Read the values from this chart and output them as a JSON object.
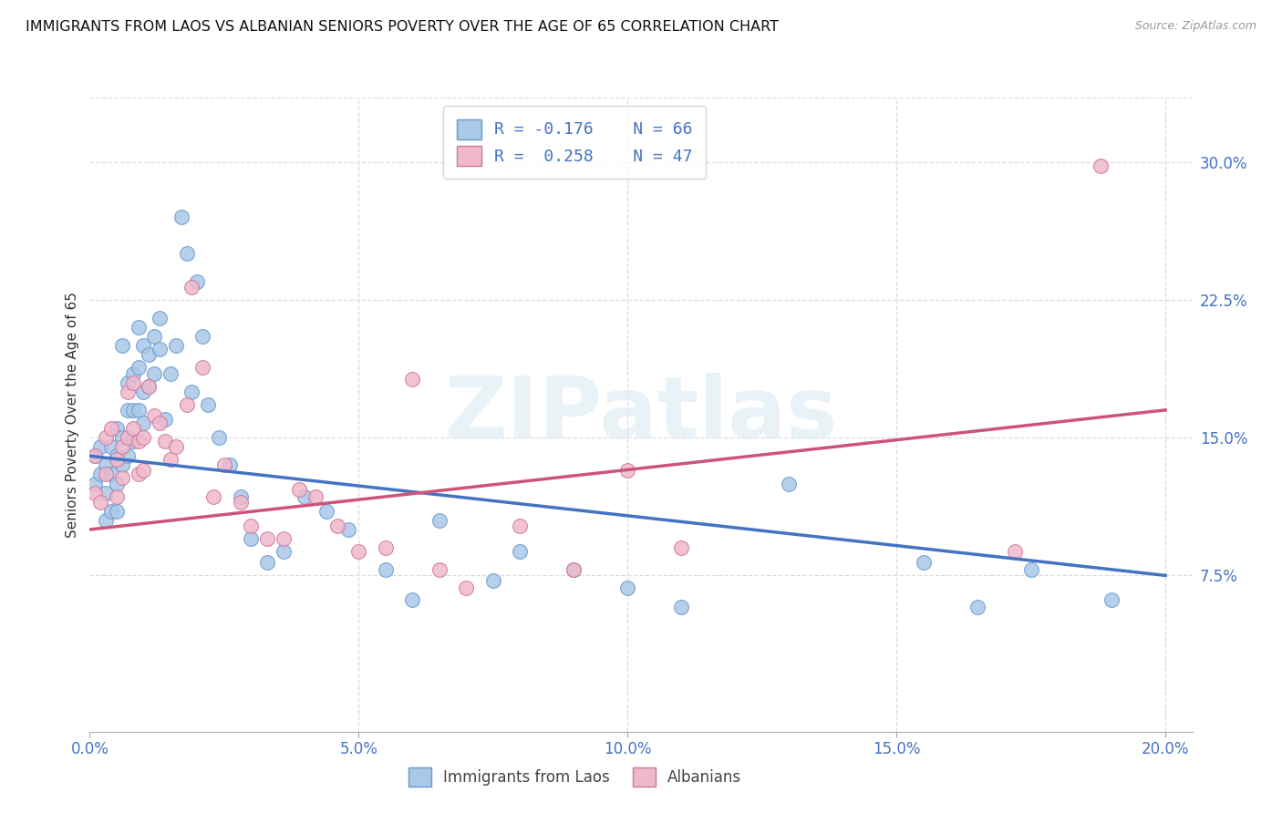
{
  "title": "IMMIGRANTS FROM LAOS VS ALBANIAN SENIORS POVERTY OVER THE AGE OF 65 CORRELATION CHART",
  "source": "Source: ZipAtlas.com",
  "ylabel": "Seniors Poverty Over the Age of 65",
  "xlim": [
    0.0,
    0.205
  ],
  "ylim": [
    -0.01,
    0.335
  ],
  "xtick_labels": [
    "0.0%",
    "5.0%",
    "10.0%",
    "15.0%",
    "20.0%"
  ],
  "xtick_vals": [
    0.0,
    0.05,
    0.1,
    0.15,
    0.2
  ],
  "ytick_labels": [
    "7.5%",
    "15.0%",
    "22.5%",
    "30.0%"
  ],
  "ytick_vals": [
    0.075,
    0.15,
    0.225,
    0.3
  ],
  "blue_color": "#aac8e8",
  "blue_edge_color": "#6699cc",
  "blue_line_color": "#4472c4",
  "pink_color": "#f0b8cc",
  "pink_edge_color": "#cc7799",
  "pink_line_color": "#cc5577",
  "legend_r_blue": "R = -0.176",
  "legend_n_blue": "N = 66",
  "legend_r_pink": "R =  0.258",
  "legend_n_pink": "N = 47",
  "watermark": "ZIPatlas",
  "blue_line_x0": 0.0,
  "blue_line_y0": 0.14,
  "blue_line_x1": 0.2,
  "blue_line_y1": 0.075,
  "pink_line_x0": 0.0,
  "pink_line_y0": 0.1,
  "pink_line_x1": 0.2,
  "pink_line_y1": 0.165,
  "blue_points_x": [
    0.001,
    0.001,
    0.002,
    0.002,
    0.003,
    0.003,
    0.003,
    0.004,
    0.004,
    0.004,
    0.005,
    0.005,
    0.005,
    0.005,
    0.006,
    0.006,
    0.006,
    0.007,
    0.007,
    0.007,
    0.008,
    0.008,
    0.008,
    0.009,
    0.009,
    0.009,
    0.01,
    0.01,
    0.01,
    0.011,
    0.011,
    0.012,
    0.012,
    0.013,
    0.013,
    0.014,
    0.015,
    0.016,
    0.017,
    0.018,
    0.019,
    0.02,
    0.021,
    0.022,
    0.024,
    0.026,
    0.028,
    0.03,
    0.033,
    0.036,
    0.04,
    0.044,
    0.048,
    0.055,
    0.06,
    0.065,
    0.075,
    0.08,
    0.09,
    0.1,
    0.11,
    0.13,
    0.155,
    0.165,
    0.175,
    0.19
  ],
  "blue_points_y": [
    0.14,
    0.125,
    0.145,
    0.13,
    0.135,
    0.12,
    0.105,
    0.145,
    0.13,
    0.11,
    0.155,
    0.14,
    0.125,
    0.11,
    0.2,
    0.15,
    0.135,
    0.18,
    0.165,
    0.14,
    0.185,
    0.165,
    0.148,
    0.21,
    0.188,
    0.165,
    0.2,
    0.175,
    0.158,
    0.195,
    0.178,
    0.205,
    0.185,
    0.215,
    0.198,
    0.16,
    0.185,
    0.2,
    0.27,
    0.25,
    0.175,
    0.235,
    0.205,
    0.168,
    0.15,
    0.135,
    0.118,
    0.095,
    0.082,
    0.088,
    0.118,
    0.11,
    0.1,
    0.078,
    0.062,
    0.105,
    0.072,
    0.088,
    0.078,
    0.068,
    0.058,
    0.125,
    0.082,
    0.058,
    0.078,
    0.062
  ],
  "pink_points_x": [
    0.001,
    0.001,
    0.002,
    0.003,
    0.003,
    0.004,
    0.005,
    0.005,
    0.006,
    0.006,
    0.007,
    0.007,
    0.008,
    0.008,
    0.009,
    0.009,
    0.01,
    0.01,
    0.011,
    0.012,
    0.013,
    0.014,
    0.015,
    0.016,
    0.018,
    0.019,
    0.021,
    0.023,
    0.025,
    0.028,
    0.03,
    0.033,
    0.036,
    0.039,
    0.042,
    0.046,
    0.05,
    0.055,
    0.06,
    0.065,
    0.07,
    0.08,
    0.09,
    0.1,
    0.11,
    0.172,
    0.188
  ],
  "pink_points_y": [
    0.14,
    0.12,
    0.115,
    0.15,
    0.13,
    0.155,
    0.138,
    0.118,
    0.145,
    0.128,
    0.175,
    0.15,
    0.18,
    0.155,
    0.148,
    0.13,
    0.15,
    0.132,
    0.178,
    0.162,
    0.158,
    0.148,
    0.138,
    0.145,
    0.168,
    0.232,
    0.188,
    0.118,
    0.135,
    0.115,
    0.102,
    0.095,
    0.095,
    0.122,
    0.118,
    0.102,
    0.088,
    0.09,
    0.182,
    0.078,
    0.068,
    0.102,
    0.078,
    0.132,
    0.09,
    0.088,
    0.298
  ]
}
